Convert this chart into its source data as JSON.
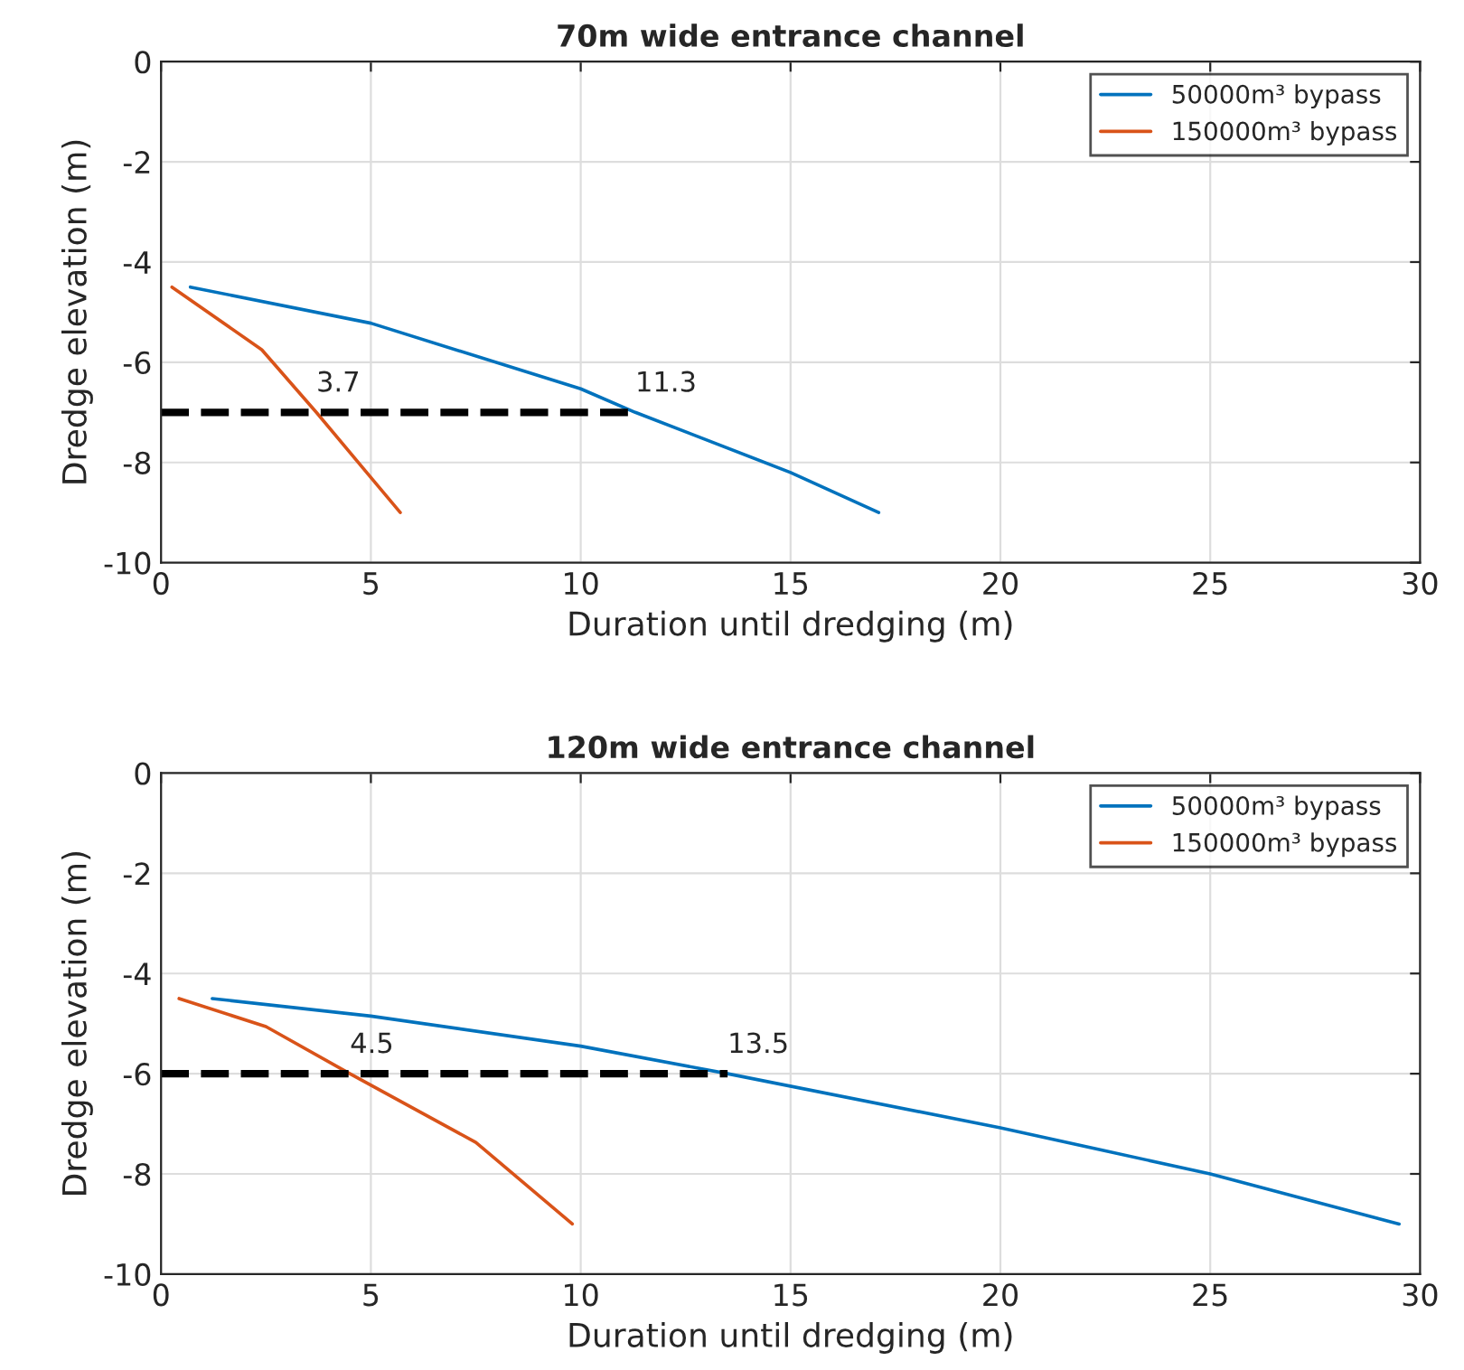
{
  "chart_data": [
    {
      "type": "line",
      "title": "70m wide entrance channel",
      "xlabel": "Duration until dredging (m)",
      "ylabel": "Dredge elevation (m)",
      "xlim": [
        0,
        30
      ],
      "ylim": [
        -10,
        0
      ],
      "xticks": [
        0,
        5,
        10,
        15,
        20,
        25,
        30
      ],
      "yticks": [
        -10,
        -8,
        -6,
        -4,
        -2,
        0
      ],
      "grid": true,
      "legend": "top right",
      "series": [
        {
          "name": "50000m³ bypass",
          "color": "#0072bd",
          "x": [
            0.7,
            5,
            10,
            11.3,
            15,
            17.1
          ],
          "values": [
            -4.5,
            -5.22,
            -6.53,
            -7,
            -8.2,
            -9
          ]
        },
        {
          "name": "150000m³ bypass",
          "color": "#d95319",
          "x": [
            0.26,
            2.4,
            3.7,
            5,
            5.7
          ],
          "values": [
            -4.5,
            -5.75,
            -7,
            -8.3,
            -9
          ]
        },
        {
          "color": "#000000",
          "line_style": "dashed",
          "x": [
            0,
            11.3
          ],
          "values": [
            -7,
            -7
          ]
        }
      ],
      "annotations": [
        {
          "text": "3.7",
          "x": 3.7,
          "y": -7
        },
        {
          "text": "11.3",
          "x": 11.3,
          "y": -7
        }
      ]
    },
    {
      "type": "line",
      "title": "120m wide entrance channel",
      "xlabel": "Duration until dredging (m)",
      "ylabel": "Dredge elevation (m)",
      "xlim": [
        0,
        30
      ],
      "ylim": [
        -10,
        0
      ],
      "xticks": [
        0,
        5,
        10,
        15,
        20,
        25,
        30
      ],
      "yticks": [
        -10,
        -8,
        -6,
        -4,
        -2,
        0
      ],
      "grid": true,
      "legend": "top right",
      "series": [
        {
          "name": "50000m³ bypass",
          "color": "#0072bd",
          "x": [
            1.22,
            5,
            10,
            13.5,
            20,
            25,
            29.5
          ],
          "values": [
            -4.5,
            -4.85,
            -5.45,
            -6,
            -7.08,
            -8.0,
            -9
          ]
        },
        {
          "name": "150000m³ bypass",
          "color": "#d95319",
          "x": [
            0.43,
            2.5,
            4.5,
            7.5,
            9.8
          ],
          "values": [
            -4.5,
            -5.06,
            -6,
            -7.37,
            -9
          ]
        },
        {
          "color": "#000000",
          "line_style": "dashed",
          "x": [
            0,
            13.5
          ],
          "values": [
            -6,
            -6
          ]
        }
      ],
      "annotations": [
        {
          "text": "4.5",
          "x": 4.5,
          "y": -6
        },
        {
          "text": "13.5",
          "x": 13.5,
          "y": -6
        }
      ]
    }
  ]
}
